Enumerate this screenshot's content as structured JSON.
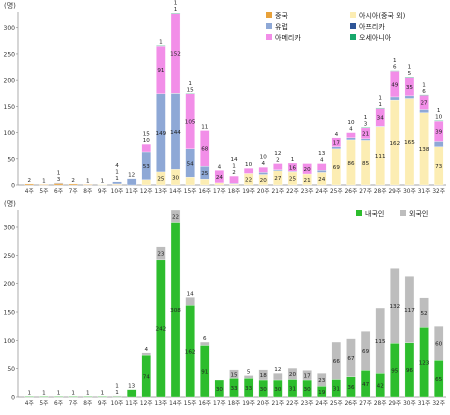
{
  "chart_data": [
    {
      "type": "bar",
      "stacked": true,
      "ylabel": "(명)",
      "ylim": [
        0,
        330
      ],
      "yticks": [
        0,
        50,
        100,
        150,
        200,
        250,
        300
      ],
      "grid": false,
      "legend_position": "top-right",
      "categories": [
        "4주",
        "5주",
        "6주",
        "7주",
        "8주",
        "9주",
        "10주",
        "11주",
        "12주",
        "13주",
        "14주",
        "15주",
        "16주",
        "17주",
        "18주",
        "19주",
        "20주",
        "21주",
        "22주",
        "23주",
        "24주",
        "25주",
        "26주",
        "27주",
        "28주",
        "29주",
        "30주",
        "31주",
        "32주"
      ],
      "series": [
        {
          "name": "중국",
          "color": "#E8A13A",
          "values": [
            2,
            1,
            3,
            2,
            1,
            0,
            1,
            0,
            0,
            0,
            0,
            0,
            0,
            0,
            0,
            0,
            0,
            0,
            0,
            0,
            0,
            0,
            0,
            0,
            0,
            0,
            0,
            0,
            0
          ]
        },
        {
          "name": "아시아(중국 외)",
          "color": "#FCEDB3",
          "values": [
            0,
            0,
            0,
            0,
            0,
            1,
            1,
            0,
            10,
            25,
            30,
            15,
            11,
            4,
            2,
            22,
            20,
            27,
            25,
            21,
            24,
            69,
            86,
            85,
            111,
            162,
            165,
            138,
            73
          ]
        },
        {
          "name": "유럽",
          "color": "#8EA8D6",
          "values": [
            0,
            0,
            1,
            0,
            0,
            0,
            4,
            12,
            53,
            149,
            144,
            54,
            25,
            0,
            1,
            0,
            4,
            2,
            1,
            0,
            4,
            4,
            4,
            3,
            1,
            6,
            5,
            6,
            10
          ]
        },
        {
          "name": "아프리카",
          "color": "#2E5597",
          "values": [
            0,
            0,
            0,
            0,
            0,
            0,
            0,
            0,
            0,
            0,
            1,
            0,
            0,
            0,
            0,
            0,
            0,
            0,
            0,
            0,
            0,
            0,
            0,
            0,
            0,
            0,
            0,
            0,
            0
          ]
        },
        {
          "name": "아메리카",
          "color": "#F28EE8",
          "values": [
            0,
            0,
            0,
            0,
            0,
            0,
            0,
            0,
            15,
            91,
            152,
            105,
            68,
            24,
            14,
            10,
            10,
            12,
            16,
            20,
            13,
            17,
            10,
            21,
            34,
            49,
            35,
            27,
            39
          ]
        },
        {
          "name": "오세아니아",
          "color": "#17A86C",
          "values": [
            0,
            0,
            0,
            0,
            0,
            0,
            0,
            0,
            0,
            1,
            1,
            1,
            0,
            0,
            0,
            0,
            0,
            0,
            0,
            0,
            0,
            0,
            0,
            1,
            1,
            1,
            1,
            1,
            1
          ]
        }
      ]
    },
    {
      "type": "bar",
      "stacked": true,
      "ylabel": "(명)",
      "ylim": [
        0,
        330
      ],
      "yticks": [
        0,
        50,
        100,
        150,
        200,
        250,
        300
      ],
      "grid": false,
      "legend_position": "top-right",
      "categories": [
        "4주",
        "5주",
        "6주",
        "7주",
        "8주",
        "9주",
        "10주",
        "11주",
        "12주",
        "13주",
        "14주",
        "15주",
        "16주",
        "17주",
        "18주",
        "19주",
        "20주",
        "21주",
        "22주",
        "23주",
        "24주",
        "25주",
        "26주",
        "27주",
        "28주",
        "29주",
        "30주",
        "31주",
        "32주"
      ],
      "series": [
        {
          "name": "내국인",
          "color": "#2DBD2D",
          "values": [
            1,
            1,
            1,
            1,
            1,
            1,
            1,
            13,
            74,
            242,
            308,
            162,
            91,
            30,
            33,
            33,
            30,
            30,
            31,
            30,
            19,
            31,
            36,
            47,
            42,
            95,
            96,
            123,
            65
          ]
        },
        {
          "name": "외국인",
          "color": "#BDBDBD",
          "values": [
            0,
            0,
            0,
            0,
            0,
            0,
            1,
            0,
            4,
            23,
            22,
            14,
            6,
            0,
            15,
            5,
            18,
            12,
            20,
            17,
            23,
            66,
            67,
            69,
            115,
            132,
            117,
            52,
            60
          ]
        }
      ]
    }
  ]
}
